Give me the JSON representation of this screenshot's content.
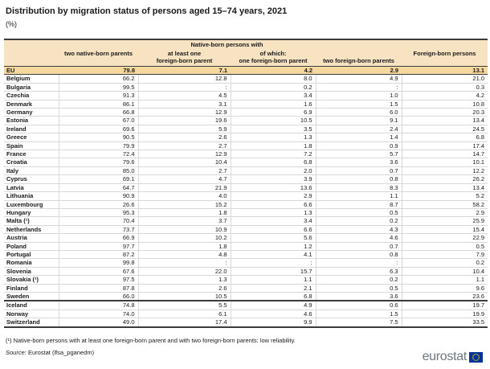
{
  "page": {
    "title": "Distribution by migration status of persons aged 15–74 years, 2021",
    "subtitle": "(%)"
  },
  "table": {
    "group_header": "Native-born persons with",
    "columns": {
      "country": "",
      "two_native": "two native-born parents",
      "at_least_one": "at least one\nforeign-born parent",
      "of_which_one_foreign": "of which:\none foreign-born parent",
      "two_foreign": "two foreign-born parents",
      "foreign_born": "Foreign-born persons"
    },
    "eu_row": {
      "name": "EU",
      "values": [
        "79.8",
        "7.1",
        "4.2",
        "2.9",
        "13.1"
      ]
    },
    "rows": [
      {
        "name": "Belgium",
        "values": [
          "66.2",
          "12.8",
          "8.0",
          "4.9",
          "21.0"
        ]
      },
      {
        "name": "Bulgaria",
        "values": [
          "99.5",
          ":",
          "0.2",
          ":",
          "0.3"
        ]
      },
      {
        "name": "Czechia",
        "values": [
          "91.3",
          "4.5",
          "3.4",
          "1.0",
          "4.2"
        ]
      },
      {
        "name": "Denmark",
        "values": [
          "86.1",
          "3.1",
          "1.6",
          "1.5",
          "10.8"
        ]
      },
      {
        "name": "Germany",
        "values": [
          "66.8",
          "12.9",
          "6.9",
          "6.0",
          "20.3"
        ]
      },
      {
        "name": "Estonia",
        "values": [
          "67.0",
          "19.6",
          "10.5",
          "9.1",
          "13.4"
        ]
      },
      {
        "name": "Ireland",
        "values": [
          "69.6",
          "5.9",
          "3.5",
          "2.4",
          "24.5"
        ]
      },
      {
        "name": "Greece",
        "values": [
          "90.5",
          "2.6",
          "1.3",
          "1.4",
          "6.8"
        ]
      },
      {
        "name": "Spain",
        "values": [
          "79.9",
          "2.7",
          "1.8",
          "0.9",
          "17.4"
        ]
      },
      {
        "name": "France",
        "values": [
          "72.4",
          "12.9",
          "7.2",
          "5.7",
          "14.7"
        ]
      },
      {
        "name": "Croatia",
        "values": [
          "79.6",
          "10.4",
          "6.8",
          "3.6",
          "10.1"
        ]
      },
      {
        "name": "Italy",
        "values": [
          "85.0",
          "2.7",
          "2.0",
          "0.7",
          "12.2"
        ]
      },
      {
        "name": "Cyprus",
        "values": [
          "69.1",
          "4.7",
          "3.9",
          "0.8",
          "26.2"
        ]
      },
      {
        "name": "Latvia",
        "values": [
          "64.7",
          "21.9",
          "13.6",
          "8.3",
          "13.4"
        ]
      },
      {
        "name": "Lithuania",
        "values": [
          "90.9",
          "4.0",
          "2.9",
          "1.1",
          "5.2"
        ]
      },
      {
        "name": "Luxembourg",
        "values": [
          "26.6",
          "15.2",
          "6.6",
          "8.7",
          "58.2"
        ]
      },
      {
        "name": "Hungary",
        "values": [
          "95.3",
          "1.8",
          "1.3",
          "0.5",
          "2.9"
        ]
      },
      {
        "name": "Malta (¹)",
        "values": [
          "70.4",
          "3.7",
          "3.4",
          "0.2",
          "25.9"
        ]
      },
      {
        "name": "Netherlands",
        "values": [
          "73.7",
          "10.9",
          "6.6",
          "4.3",
          "15.4"
        ]
      },
      {
        "name": "Austria",
        "values": [
          "66.9",
          "10.2",
          "5.6",
          "4.6",
          "22.9"
        ]
      },
      {
        "name": "Poland",
        "values": [
          "97.7",
          "1.8",
          "1.2",
          "0.7",
          "0.5"
        ]
      },
      {
        "name": "Portugal",
        "values": [
          "87.2",
          "4.8",
          "4.1",
          "0.8",
          "7.9"
        ]
      },
      {
        "name": "Romania",
        "values": [
          "99.8",
          ":",
          ":",
          ":",
          "0.2"
        ]
      },
      {
        "name": "Slovenia",
        "values": [
          "67.6",
          "22.0",
          "15.7",
          "6.3",
          "10.4"
        ]
      },
      {
        "name": "Slovakia (¹)",
        "values": [
          "97.5",
          "1.3",
          "1.1",
          "0.2",
          "1.1"
        ]
      },
      {
        "name": "Finland",
        "values": [
          "87.8",
          "2.6",
          "2.1",
          "0.5",
          "9.6"
        ]
      },
      {
        "name": "Sweden",
        "values": [
          "66.0",
          "10.5",
          "6.8",
          "3.6",
          "23.6"
        ]
      }
    ],
    "efta_rows": [
      {
        "name": "Iceland",
        "values": [
          "74.8",
          "5.5",
          "4.9",
          "0.6",
          "19.7"
        ]
      },
      {
        "name": "Norway",
        "values": [
          "74.0",
          "6.1",
          "4.6",
          "1.5",
          "19.9"
        ]
      },
      {
        "name": "Switzerland",
        "values": [
          "49.0",
          "17.4",
          "9.9",
          "7.5",
          "33.5"
        ]
      }
    ]
  },
  "footnote": "(¹) Native-born persons with at least one foreign-born parent and with two foreign-born parents: low reliability.",
  "source": {
    "label": "Source:",
    "text": "Eurostat (lfsa_pganedm)"
  },
  "logo": {
    "text": "eurostat"
  },
  "colors": {
    "header_bg": "#F7E3C1",
    "eu_row_bg": "#F5D89E",
    "border_dark": "#3C3C3C",
    "border_light": "#D9D9D9",
    "flag_blue": "#003399",
    "star_yellow": "#FFCC00",
    "logo_gray": "#6E7880"
  }
}
